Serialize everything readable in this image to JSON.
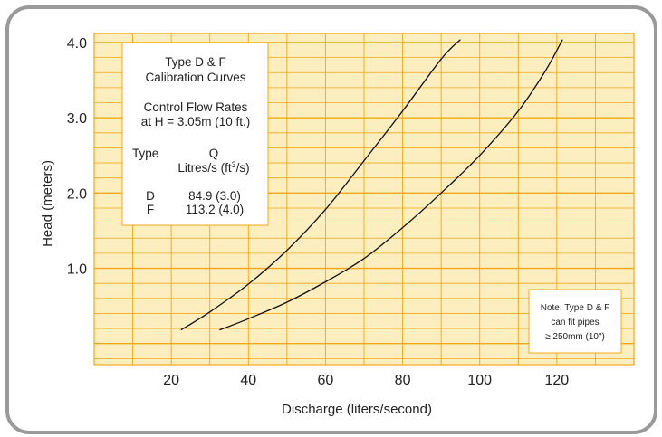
{
  "chart_data": {
    "type": "line",
    "xlabel": "Discharge (liters/second)",
    "ylabel": "Head (meters)",
    "xlim": [
      0,
      140
    ],
    "ylim": [
      -0.28,
      4.12
    ],
    "x_ticks": [
      20,
      40,
      60,
      80,
      100,
      120
    ],
    "x_tick_labels": [
      "20",
      "40",
      "60",
      "80",
      "100",
      "120"
    ],
    "y_ticks": [
      1.0,
      2.0,
      3.0,
      4.0
    ],
    "y_tick_labels": [
      "1.0",
      "2.0",
      "3.0",
      "4.0"
    ],
    "grid": true,
    "colors": {
      "background": "#fdeec0",
      "grid": "#f0a818",
      "curve": "#111111",
      "frame": "#9a9a9a"
    },
    "series": [
      {
        "x": [
          22.5,
          30,
          40,
          50,
          60,
          70,
          80,
          90,
          95
        ],
        "y": [
          0.18,
          0.42,
          0.79,
          1.24,
          1.78,
          2.43,
          3.09,
          3.78,
          4.04
        ]
      },
      {
        "x": [
          32.5,
          40,
          50,
          60,
          70,
          80,
          90,
          100,
          110,
          117,
          121.5
        ],
        "y": [
          0.18,
          0.33,
          0.55,
          0.82,
          1.13,
          1.54,
          2.0,
          2.5,
          3.09,
          3.62,
          4.04
        ]
      }
    ],
    "info_box": {
      "title_lines": [
        "Type D & F",
        "Calibration Curves"
      ],
      "subtitle_lines": [
        "Control Flow Rates",
        "at H = 3.05m (10 ft.)"
      ],
      "col_type": "Type",
      "col_q": "Q",
      "col_q_unit_base": "Litres/s (ft",
      "col_q_unit_sup": "3",
      "col_q_unit_end": "/s)",
      "rows": [
        {
          "type": "D",
          "q": "84.9 (3.0)"
        },
        {
          "type": "F",
          "q": "113.2 (4.0)"
        }
      ]
    },
    "note_lines": [
      "Note: Type D & F",
      "can fit pipes",
      "≥ 250mm (10\")"
    ]
  }
}
